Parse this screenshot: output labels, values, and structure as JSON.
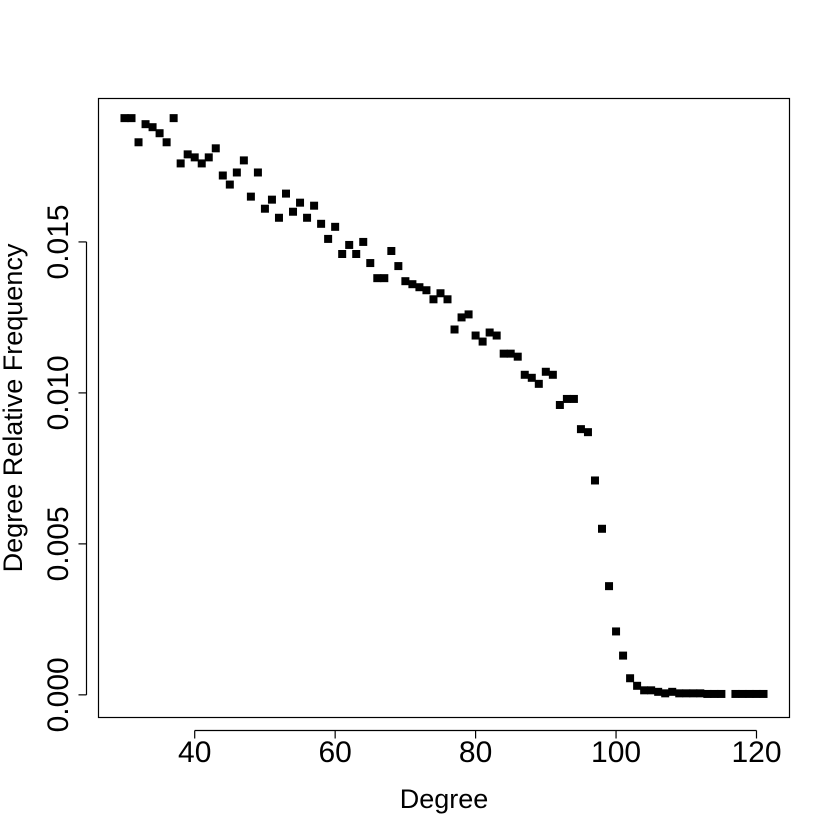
{
  "chart_data": {
    "type": "scatter",
    "title": "",
    "xlabel": "Degree",
    "ylabel": "Degree Relative Frequency",
    "xlim": [
      26.3,
      124.7
    ],
    "ylim": [
      -0.00075,
      0.01975
    ],
    "x_ticks": [
      40,
      60,
      80,
      100,
      120
    ],
    "x_tick_labels": [
      "40",
      "60",
      "80",
      "100",
      "120"
    ],
    "y_ticks": [
      0.0,
      0.005,
      0.01,
      0.015
    ],
    "y_tick_labels": [
      "0.000",
      "0.005",
      "0.010",
      "0.015"
    ],
    "grid": false,
    "marker": "square",
    "color": "#000000",
    "series": [
      {
        "x": [
          30,
          31,
          32,
          33,
          34,
          35,
          36,
          37,
          38,
          39,
          40,
          41,
          42,
          43,
          44,
          45,
          46,
          47,
          48,
          49,
          50,
          51,
          52,
          53,
          54,
          55,
          56,
          57,
          58,
          59,
          60,
          61,
          62,
          63,
          64,
          65,
          66,
          67,
          68,
          69,
          70,
          71,
          72,
          73,
          74,
          75,
          76,
          77,
          78,
          79,
          80,
          81,
          82,
          83,
          84,
          85,
          86,
          87,
          88,
          89,
          90,
          91,
          92,
          93,
          94,
          95,
          96,
          97,
          98,
          99,
          100,
          101,
          102,
          103,
          104,
          105,
          106,
          107,
          108,
          109,
          110,
          111,
          112,
          113,
          114,
          115,
          117,
          118,
          119,
          120,
          121
        ],
        "y": [
          0.0191,
          0.0191,
          0.0183,
          0.0189,
          0.0188,
          0.0186,
          0.0183,
          0.0191,
          0.0176,
          0.0179,
          0.0178,
          0.0176,
          0.0178,
          0.0181,
          0.0172,
          0.0169,
          0.0173,
          0.0177,
          0.0165,
          0.0173,
          0.0161,
          0.0164,
          0.0158,
          0.0166,
          0.016,
          0.0163,
          0.0158,
          0.0162,
          0.0156,
          0.0151,
          0.0155,
          0.0146,
          0.0149,
          0.0146,
          0.015,
          0.0143,
          0.0138,
          0.0138,
          0.0147,
          0.0142,
          0.0137,
          0.0136,
          0.0135,
          0.0134,
          0.0131,
          0.0133,
          0.0131,
          0.0121,
          0.0125,
          0.0126,
          0.0119,
          0.0117,
          0.012,
          0.0119,
          0.0113,
          0.0113,
          0.0112,
          0.0106,
          0.0105,
          0.0103,
          0.0107,
          0.0106,
          0.0096,
          0.0098,
          0.0098,
          0.0088,
          0.0087,
          0.0071,
          0.0055,
          0.0036,
          0.0021,
          0.0013,
          0.00055,
          0.0003,
          0.00015,
          0.00015,
          0.0001,
          5e-05,
          0.0001,
          5e-05,
          5e-05,
          5e-05,
          5e-05,
          3e-05,
          3e-05,
          3e-05,
          3e-05,
          3e-05,
          3e-05,
          3e-05,
          3e-05
        ]
      }
    ]
  }
}
